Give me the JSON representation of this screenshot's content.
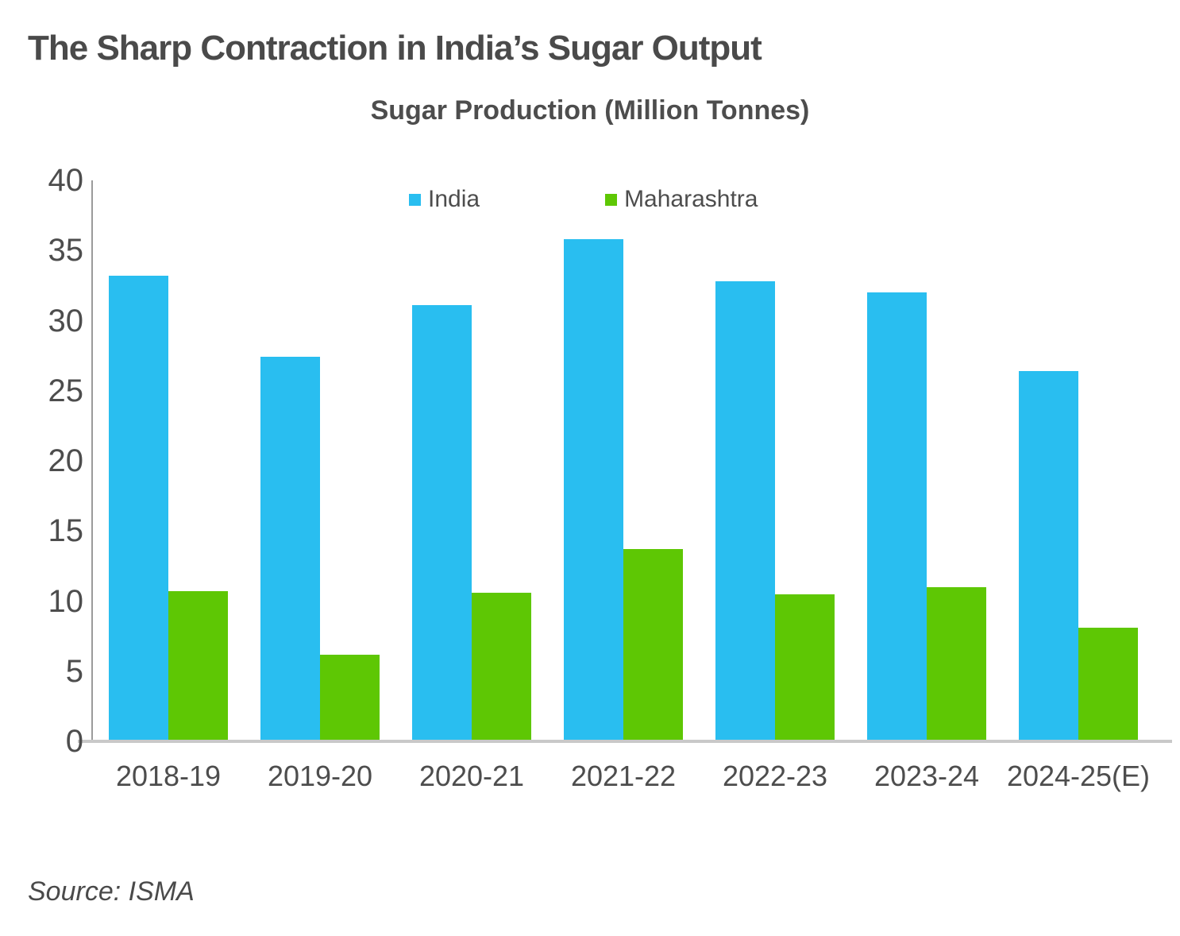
{
  "title": "The Sharp Contraction in India’s Sugar Output",
  "source": "Source: ISMA",
  "chart_data": {
    "type": "bar",
    "title": "Sugar Production (Million Tonnes)",
    "categories": [
      "2018-19",
      "2019-20",
      "2020-21",
      "2021-22",
      "2022-23",
      "2023-24",
      "2024-25(E)"
    ],
    "series": [
      {
        "name": "India",
        "color": "#29BEF0",
        "values": [
          33.2,
          27.4,
          31.1,
          35.8,
          32.8,
          32.0,
          26.4
        ]
      },
      {
        "name": "Maharashtra",
        "color": "#5EC704",
        "values": [
          10.7,
          6.2,
          10.6,
          13.7,
          10.5,
          11.0,
          8.1
        ]
      }
    ],
    "xlabel": "",
    "ylabel": "",
    "ylim": [
      0,
      40
    ],
    "yticks": [
      0,
      5,
      10,
      15,
      20,
      25,
      30,
      35,
      40
    ],
    "legend_position": "top-inside",
    "grid": false
  }
}
